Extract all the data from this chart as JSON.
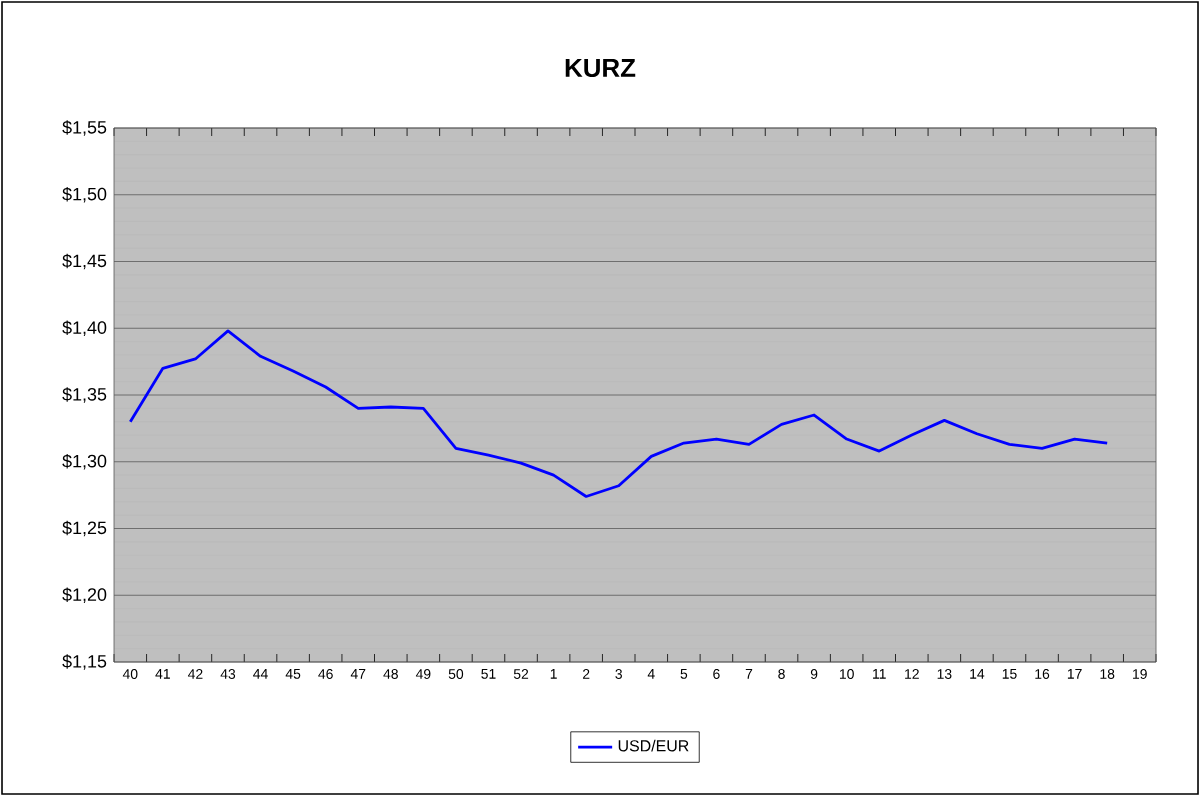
{
  "chart_data": {
    "type": "line",
    "title": "KURZ",
    "categories": [
      "40",
      "41",
      "42",
      "43",
      "44",
      "45",
      "46",
      "47",
      "48",
      "49",
      "50",
      "51",
      "52",
      "1",
      "2",
      "3",
      "4",
      "5",
      "6",
      "7",
      "8",
      "9",
      "10",
      "11",
      "12",
      "13",
      "14",
      "15",
      "16",
      "17",
      "18",
      "19"
    ],
    "series": [
      {
        "name": "USD/EUR",
        "color": "#0000ff",
        "values": [
          1.33,
          1.37,
          1.377,
          1.398,
          1.379,
          1.368,
          1.356,
          1.34,
          1.341,
          1.34,
          1.31,
          1.305,
          1.299,
          1.29,
          1.274,
          1.282,
          1.304,
          1.314,
          1.317,
          1.313,
          1.328,
          1.335,
          1.317,
          1.308,
          1.32,
          1.331,
          1.321,
          1.313,
          1.31,
          1.317,
          1.314,
          null
        ]
      }
    ],
    "ylim": [
      1.15,
      1.55
    ],
    "yticks": [
      {
        "value": 1.15,
        "label": "$1,15"
      },
      {
        "value": 1.2,
        "label": "$1,20"
      },
      {
        "value": 1.25,
        "label": "$1,25"
      },
      {
        "value": 1.3,
        "label": "$1,30"
      },
      {
        "value": 1.35,
        "label": "$1,35"
      },
      {
        "value": 1.4,
        "label": "$1,40"
      },
      {
        "value": 1.45,
        "label": "$1,45"
      },
      {
        "value": 1.5,
        "label": "$1,50"
      },
      {
        "value": 1.55,
        "label": "$1,55"
      }
    ],
    "grid": "y",
    "legend": "bottom",
    "marker": "none",
    "line_style": "solid"
  }
}
